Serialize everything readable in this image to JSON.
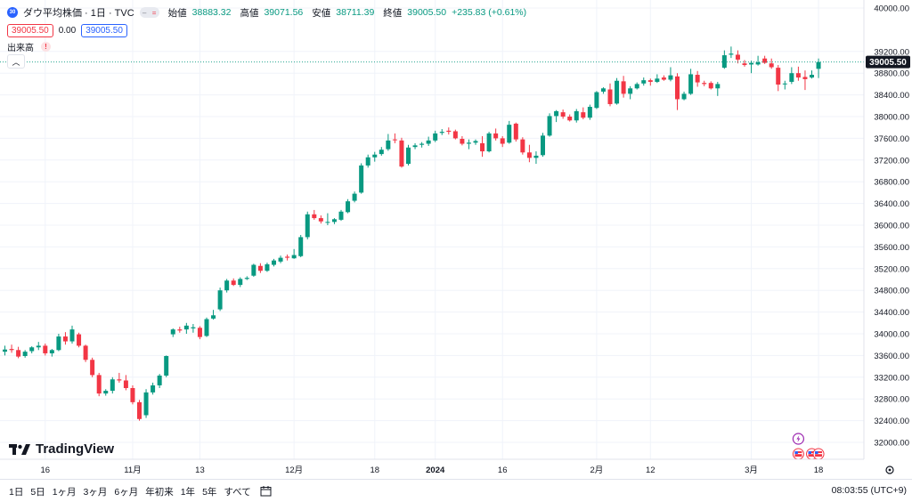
{
  "legend": {
    "badge": "30",
    "title": "ダウ平均株価 · 1日 · TVC",
    "open_label": "始値",
    "open": "38883.32",
    "high_label": "高値",
    "high": "39071.56",
    "low_label": "安値",
    "low": "38711.39",
    "close_label": "終値",
    "close": "39005.50",
    "change": "+235.83 (+0.61%)",
    "sell": "39005.50",
    "spread": "0.00",
    "buy": "39005.50",
    "volume_label": "出来高",
    "warn": "!"
  },
  "logo": "TradingView",
  "bottom": {
    "ranges": [
      "1日",
      "5日",
      "1ヶ月",
      "3ヶ月",
      "6ヶ月",
      "年初来",
      "1年",
      "5年",
      "すべて"
    ],
    "calendar_icon": "calendar-icon",
    "clock": "08:03:55 (UTC+9)"
  },
  "colors": {
    "up": "#089981",
    "down": "#f23645",
    "grid": "#f0f3fa",
    "text": "#131722",
    "price_tag": "#131722"
  },
  "chart_data": {
    "type": "candlestick",
    "symbol": "ダウ平均株価",
    "interval": "1日",
    "ylim": [
      31800,
      40000
    ],
    "y_ticks": [
      32000,
      32400,
      32800,
      33200,
      33600,
      34000,
      34400,
      34800,
      35200,
      35600,
      36000,
      36400,
      36800,
      37200,
      37600,
      38000,
      38400,
      38800,
      39200,
      40000
    ],
    "x_ticks": [
      {
        "index": 6,
        "label": "16"
      },
      {
        "index": 19,
        "label": "11月"
      },
      {
        "index": 29,
        "label": "13"
      },
      {
        "index": 43,
        "label": "12月"
      },
      {
        "index": 55,
        "label": "18"
      },
      {
        "index": 64,
        "label": "2024"
      },
      {
        "index": 74,
        "label": "16"
      },
      {
        "index": 88,
        "label": "2月"
      },
      {
        "index": 96,
        "label": "12"
      },
      {
        "index": 111,
        "label": "3月"
      },
      {
        "index": 121,
        "label": "18"
      }
    ],
    "last_price": 39005.5,
    "last_price_label": "39005.50",
    "candles": [
      [
        33670,
        33780,
        33600,
        33710
      ],
      [
        33720,
        33800,
        33650,
        33700
      ],
      [
        33700,
        33760,
        33550,
        33580
      ],
      [
        33590,
        33700,
        33560,
        33670
      ],
      [
        33680,
        33770,
        33640,
        33750
      ],
      [
        33750,
        33850,
        33700,
        33780
      ],
      [
        33780,
        33820,
        33600,
        33640
      ],
      [
        33640,
        33720,
        33580,
        33700
      ],
      [
        33700,
        34000,
        33680,
        33950
      ],
      [
        33950,
        34030,
        33800,
        33860
      ],
      [
        33860,
        34150,
        33820,
        34080
      ],
      [
        33990,
        34020,
        33750,
        33780
      ],
      [
        33780,
        33800,
        33480,
        33520
      ],
      [
        33520,
        33560,
        33200,
        33240
      ],
      [
        33240,
        33280,
        32850,
        32900
      ],
      [
        32900,
        32980,
        32860,
        32950
      ],
      [
        32950,
        33200,
        32900,
        33160
      ],
      [
        33160,
        33280,
        33100,
        33140
      ],
      [
        33140,
        33240,
        32960,
        33000
      ],
      [
        33000,
        33050,
        32700,
        32740
      ],
      [
        32740,
        32780,
        32400,
        32430
      ],
      [
        32500,
        32980,
        32450,
        32920
      ],
      [
        32920,
        33100,
        32880,
        33050
      ],
      [
        33050,
        33260,
        33000,
        33230
      ],
      [
        33230,
        33600,
        33200,
        33590
      ],
      [
        33990,
        34100,
        33940,
        34080
      ],
      [
        34080,
        34130,
        34020,
        34060
      ],
      [
        34080,
        34200,
        34000,
        34150
      ],
      [
        34100,
        34180,
        34020,
        34120
      ],
      [
        34110,
        34140,
        33900,
        33940
      ],
      [
        33960,
        34300,
        33940,
        34270
      ],
      [
        34280,
        34440,
        34260,
        34340
      ],
      [
        34450,
        34850,
        34420,
        34800
      ],
      [
        34800,
        35010,
        34760,
        34980
      ],
      [
        34980,
        35020,
        34880,
        34900
      ],
      [
        34900,
        35040,
        34860,
        35010
      ],
      [
        35010,
        35060,
        34990,
        35030
      ],
      [
        35070,
        35290,
        35050,
        35270
      ],
      [
        35250,
        35300,
        35120,
        35160
      ],
      [
        35160,
        35310,
        35140,
        35280
      ],
      [
        35270,
        35380,
        35240,
        35350
      ],
      [
        35330,
        35440,
        35300,
        35400
      ],
      [
        35420,
        35460,
        35350,
        35400
      ],
      [
        35390,
        35560,
        35380,
        35450
      ],
      [
        35430,
        35820,
        35410,
        35780
      ],
      [
        35780,
        36250,
        35740,
        36200
      ],
      [
        36200,
        36280,
        36100,
        36130
      ],
      [
        36130,
        36180,
        36030,
        36070
      ],
      [
        36050,
        36220,
        36000,
        36060
      ],
      [
        36060,
        36130,
        36020,
        36110
      ],
      [
        36100,
        36280,
        36080,
        36250
      ],
      [
        36240,
        36480,
        36220,
        36440
      ],
      [
        36450,
        36620,
        36420,
        36580
      ],
      [
        36600,
        37140,
        36580,
        37100
      ],
      [
        37100,
        37300,
        37060,
        37250
      ],
      [
        37250,
        37350,
        37170,
        37300
      ],
      [
        37310,
        37440,
        37280,
        37390
      ],
      [
        37400,
        37680,
        37370,
        37560
      ],
      [
        37580,
        37690,
        37510,
        37570
      ],
      [
        37560,
        37610,
        37060,
        37080
      ],
      [
        37130,
        37480,
        37100,
        37430
      ],
      [
        37440,
        37510,
        37400,
        37470
      ],
      [
        37480,
        37530,
        37430,
        37500
      ],
      [
        37500,
        37630,
        37460,
        37560
      ],
      [
        37560,
        37740,
        37530,
        37690
      ],
      [
        37700,
        37770,
        37660,
        37720
      ],
      [
        37740,
        37800,
        37670,
        37720
      ],
      [
        37730,
        37760,
        37580,
        37600
      ],
      [
        37590,
        37640,
        37470,
        37500
      ],
      [
        37500,
        37580,
        37400,
        37520
      ],
      [
        37520,
        37580,
        37480,
        37550
      ],
      [
        37510,
        37640,
        37260,
        37360
      ],
      [
        37360,
        37720,
        37340,
        37690
      ],
      [
        37690,
        37780,
        37560,
        37600
      ],
      [
        37600,
        37640,
        37440,
        37500
      ],
      [
        37520,
        37920,
        37500,
        37850
      ],
      [
        37870,
        37890,
        37540,
        37580
      ],
      [
        37580,
        37620,
        37300,
        37340
      ],
      [
        37340,
        37480,
        37160,
        37240
      ],
      [
        37240,
        37360,
        37130,
        37280
      ],
      [
        37290,
        37700,
        37260,
        37650
      ],
      [
        37650,
        38060,
        37630,
        38010
      ],
      [
        38010,
        38120,
        37900,
        38100
      ],
      [
        38080,
        38130,
        37960,
        38000
      ],
      [
        38000,
        38040,
        37910,
        37930
      ],
      [
        37930,
        38140,
        37890,
        38100
      ],
      [
        38080,
        38170,
        37950,
        37980
      ],
      [
        37980,
        38220,
        37940,
        38180
      ],
      [
        38160,
        38470,
        38140,
        38450
      ],
      [
        38460,
        38540,
        38420,
        38520
      ],
      [
        38500,
        38610,
        38190,
        38230
      ],
      [
        38240,
        38710,
        38220,
        38660
      ],
      [
        38650,
        38750,
        38350,
        38420
      ],
      [
        38420,
        38560,
        38320,
        38520
      ],
      [
        38520,
        38630,
        38500,
        38600
      ],
      [
        38610,
        38720,
        38570,
        38670
      ],
      [
        38670,
        38700,
        38570,
        38640
      ],
      [
        38640,
        38780,
        38620,
        38700
      ],
      [
        38720,
        38760,
        38660,
        38680
      ],
      [
        38680,
        38910,
        38650,
        38760
      ],
      [
        38740,
        38800,
        38120,
        38320
      ],
      [
        38320,
        38460,
        38300,
        38420
      ],
      [
        38420,
        38880,
        38400,
        38780
      ],
      [
        38770,
        38840,
        38550,
        38630
      ],
      [
        38620,
        38660,
        38560,
        38600
      ],
      [
        38620,
        38650,
        38500,
        38520
      ],
      [
        38520,
        38640,
        38380,
        38600
      ],
      [
        38900,
        39220,
        38880,
        39130
      ],
      [
        39140,
        39290,
        39080,
        39160
      ],
      [
        39140,
        39220,
        38980,
        39050
      ],
      [
        38980,
        39040,
        38920,
        38950
      ],
      [
        38960,
        39030,
        38800,
        38990
      ],
      [
        38960,
        39120,
        38940,
        39000
      ],
      [
        39070,
        39120,
        38970,
        38990
      ],
      [
        38980,
        39070,
        38880,
        38910
      ],
      [
        38900,
        38950,
        38470,
        38590
      ],
      [
        38600,
        38660,
        38500,
        38610
      ],
      [
        38640,
        38910,
        38600,
        38800
      ],
      [
        38800,
        38920,
        38660,
        38720
      ],
      [
        38730,
        38850,
        38490,
        38690
      ],
      [
        38720,
        38850,
        38700,
        38770
      ],
      [
        38880,
        39070,
        38710,
        39005
      ]
    ],
    "event_icons": [
      {
        "index": 118,
        "kind": "lightning-icon",
        "row": 0
      },
      {
        "index": 118,
        "kind": "us-flag-icon",
        "row": 1
      },
      {
        "index": 120,
        "kind": "us-flag-icon",
        "row": 1
      },
      {
        "index": 121,
        "kind": "us-flag-icon",
        "row": 1
      }
    ]
  }
}
